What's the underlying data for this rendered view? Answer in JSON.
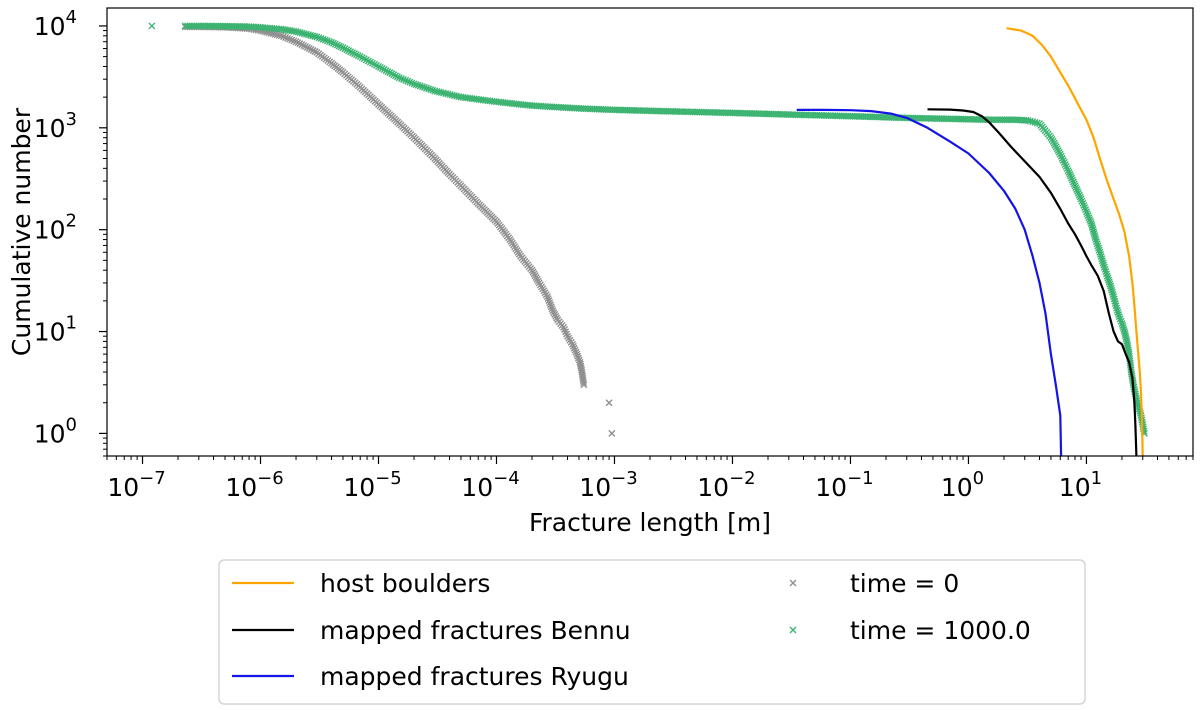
{
  "chart_data": {
    "type": "line",
    "xlabel": "Fracture length [m]",
    "ylabel": "Cumulative number",
    "xscale": "log",
    "yscale": "log",
    "xlim": [
      5e-08,
      80
    ],
    "ylim": [
      0.6,
      15000
    ],
    "grid": false,
    "legend_placement": "below",
    "x_ticks": [
      {
        "value": 1e-07,
        "mantissa": "10",
        "exponent": "−7"
      },
      {
        "value": 1e-06,
        "mantissa": "10",
        "exponent": "−6"
      },
      {
        "value": 1e-05,
        "mantissa": "10",
        "exponent": "−5"
      },
      {
        "value": 0.0001,
        "mantissa": "10",
        "exponent": "−4"
      },
      {
        "value": 0.001,
        "mantissa": "10",
        "exponent": "−3"
      },
      {
        "value": 0.01,
        "mantissa": "10",
        "exponent": "−2"
      },
      {
        "value": 0.1,
        "mantissa": "10",
        "exponent": "−1"
      },
      {
        "value": 1,
        "mantissa": "10",
        "exponent": "0"
      },
      {
        "value": 10,
        "mantissa": "10",
        "exponent": "1"
      }
    ],
    "y_ticks": [
      {
        "value": 1,
        "mantissa": "10",
        "exponent": "0"
      },
      {
        "value": 10,
        "mantissa": "10",
        "exponent": "1"
      },
      {
        "value": 100,
        "mantissa": "10",
        "exponent": "2"
      },
      {
        "value": 1000,
        "mantissa": "10",
        "exponent": "3"
      },
      {
        "value": 10000,
        "mantissa": "10",
        "exponent": "4"
      }
    ],
    "series": [
      {
        "name": "host boulders",
        "kind": "line",
        "color": "#ffa500",
        "points": [
          [
            2.1,
            9500
          ],
          [
            2.8,
            9000
          ],
          [
            3.5,
            8000
          ],
          [
            4.2,
            6500
          ],
          [
            5,
            5000
          ],
          [
            6,
            3500
          ],
          [
            7,
            2600
          ],
          [
            8.5,
            1700
          ],
          [
            10,
            1200
          ],
          [
            11.5,
            800
          ],
          [
            13,
            500
          ],
          [
            15,
            300
          ],
          [
            17,
            200
          ],
          [
            19,
            140
          ],
          [
            21,
            95
          ],
          [
            23,
            55
          ],
          [
            24.5,
            30
          ],
          [
            25.5,
            18
          ],
          [
            26.5,
            10
          ],
          [
            27.5,
            6
          ],
          [
            28.3,
            4
          ],
          [
            29,
            2.5
          ],
          [
            29.5,
            1.5
          ],
          [
            30,
            0.6
          ]
        ]
      },
      {
        "name": "mapped fractures Bennu",
        "kind": "line",
        "color": "#000000",
        "points": [
          [
            0.45,
            1520
          ],
          [
            0.7,
            1510
          ],
          [
            0.9,
            1480
          ],
          [
            1.1,
            1430
          ],
          [
            1.3,
            1300
          ],
          [
            1.5,
            1130
          ],
          [
            1.8,
            900
          ],
          [
            2.3,
            650
          ],
          [
            3,
            470
          ],
          [
            4,
            330
          ],
          [
            5,
            230
          ],
          [
            6,
            160
          ],
          [
            7,
            115
          ],
          [
            8,
            90
          ],
          [
            9,
            70
          ],
          [
            10,
            55
          ],
          [
            11,
            45
          ],
          [
            12.5,
            35
          ],
          [
            14,
            25
          ],
          [
            15.5,
            15
          ],
          [
            17,
            10
          ],
          [
            18.5,
            8
          ],
          [
            20,
            7.5
          ],
          [
            21.5,
            6
          ],
          [
            23,
            5
          ],
          [
            24.5,
            3.5
          ],
          [
            25.5,
            2
          ],
          [
            26,
            1.2
          ],
          [
            26.5,
            0.6
          ]
        ]
      },
      {
        "name": "mapped fractures Ryugu",
        "kind": "line",
        "color": "#1414e6",
        "points": [
          [
            0.035,
            1500
          ],
          [
            0.06,
            1500
          ],
          [
            0.1,
            1490
          ],
          [
            0.15,
            1460
          ],
          [
            0.22,
            1380
          ],
          [
            0.3,
            1250
          ],
          [
            0.45,
            1000
          ],
          [
            0.7,
            730
          ],
          [
            1,
            560
          ],
          [
            1.5,
            360
          ],
          [
            2,
            240
          ],
          [
            2.5,
            160
          ],
          [
            3,
            100
          ],
          [
            3.5,
            55
          ],
          [
            4,
            30
          ],
          [
            4.5,
            15
          ],
          [
            5,
            6
          ],
          [
            5.5,
            3
          ],
          [
            6,
            1.5
          ],
          [
            6.1,
            0.6
          ]
        ]
      },
      {
        "name": "time = 0",
        "kind": "marker",
        "marker": "x",
        "color": "#909090",
        "points": [
          [
            2.3e-07,
            9800
          ],
          [
            3e-07,
            9800
          ],
          [
            5e-07,
            9700
          ],
          [
            8e-07,
            9400
          ],
          [
            1e-06,
            9000
          ],
          [
            1.5e-06,
            8000
          ],
          [
            2e-06,
            7000
          ],
          [
            3e-06,
            5500
          ],
          [
            4e-06,
            4300
          ],
          [
            5e-06,
            3500
          ],
          [
            7e-06,
            2500
          ],
          [
            1e-05,
            1700
          ],
          [
            1.5e-05,
            1100
          ],
          [
            2e-05,
            800
          ],
          [
            3e-05,
            500
          ],
          [
            4e-05,
            350
          ],
          [
            5e-05,
            270
          ],
          [
            7e-05,
            180
          ],
          [
            0.0001,
            120
          ],
          [
            0.00013,
            80
          ],
          [
            0.00016,
            55
          ],
          [
            0.0002,
            40
          ],
          [
            0.00023,
            30
          ],
          [
            0.00027,
            22
          ],
          [
            0.0003,
            16
          ],
          [
            0.00033,
            13
          ],
          [
            0.00037,
            11
          ],
          [
            0.0004,
            9
          ],
          [
            0.00044,
            7.5
          ],
          [
            0.00048,
            6
          ],
          [
            0.00051,
            5
          ],
          [
            0.00053,
            4
          ],
          [
            0.00055,
            3
          ],
          [
            0.0009,
            2
          ],
          [
            0.00095,
            1
          ]
        ]
      },
      {
        "name": "time = 1000.0",
        "kind": "marker",
        "marker": "x",
        "color": "#3cb371",
        "points": [
          [
            1.2e-07,
            10000
          ],
          [
            2.3e-07,
            10000
          ],
          [
            3e-07,
            10000
          ],
          [
            5e-07,
            9950
          ],
          [
            8e-07,
            9850
          ],
          [
            1e-06,
            9700
          ],
          [
            1.5e-06,
            9300
          ],
          [
            2e-06,
            8800
          ],
          [
            3e-06,
            7800
          ],
          [
            4e-06,
            6900
          ],
          [
            5e-06,
            6100
          ],
          [
            7e-06,
            5000
          ],
          [
            1e-05,
            4000
          ],
          [
            1.5e-05,
            3100
          ],
          [
            2e-05,
            2700
          ],
          [
            3e-05,
            2300
          ],
          [
            5e-05,
            2000
          ],
          [
            0.0001,
            1800
          ],
          [
            0.0002,
            1650
          ],
          [
            0.0005,
            1550
          ],
          [
            0.001,
            1500
          ],
          [
            0.003,
            1450
          ],
          [
            0.01,
            1400
          ],
          [
            0.03,
            1350
          ],
          [
            0.1,
            1300
          ],
          [
            0.3,
            1250
          ],
          [
            0.8,
            1220
          ],
          [
            1.5,
            1200
          ],
          [
            2.5,
            1200
          ],
          [
            3.2,
            1180
          ],
          [
            4,
            1100
          ],
          [
            5,
            800
          ],
          [
            6,
            550
          ],
          [
            7,
            380
          ],
          [
            8,
            270
          ],
          [
            9,
            200
          ],
          [
            10,
            150
          ],
          [
            11,
            115
          ],
          [
            12,
            80
          ],
          [
            13,
            60
          ],
          [
            14,
            45
          ],
          [
            15,
            35
          ],
          [
            16,
            28
          ],
          [
            17,
            22
          ],
          [
            18,
            17
          ],
          [
            19,
            14
          ],
          [
            20,
            12
          ],
          [
            21,
            10
          ],
          [
            22,
            8
          ],
          [
            23,
            6
          ],
          [
            24,
            4
          ],
          [
            25,
            3
          ],
          [
            27,
            2
          ],
          [
            29,
            1.5
          ],
          [
            31,
            1
          ]
        ]
      }
    ]
  }
}
